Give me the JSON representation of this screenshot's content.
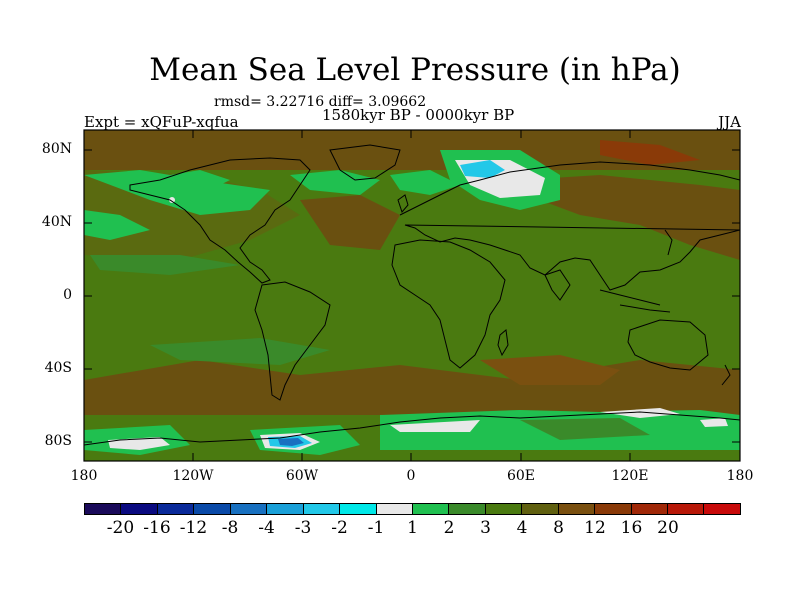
{
  "title": "Mean Sea Level Pressure (in hPa)",
  "stats": "rmsd= 3.22716 diff= 3.09662",
  "experiment": "Expt = xQFuP-xqfua",
  "period": "1580kyr BP - 0000kyr BP",
  "season": "JJA",
  "lat_labels": [
    "80N",
    "40N",
    "0",
    "40S",
    "80S"
  ],
  "lon_labels": [
    "180",
    "120W",
    "60W",
    "0",
    "60E",
    "120E",
    "180"
  ],
  "colorbar": {
    "colors": [
      "#1a0a5a",
      "#0a0a80",
      "#0a2a9a",
      "#0a4aa8",
      "#1870c0",
      "#1aa0d8",
      "#22c8e8",
      "#00e8e8",
      "#e8e8e8",
      "#20c050",
      "#3a8a2a",
      "#4a7a10",
      "#606010",
      "#7a5010",
      "#8a3a08",
      "#a02808",
      "#b81808",
      "#c80a0a"
    ],
    "labels": [
      "-20",
      "-16",
      "-12",
      "-8",
      "-4",
      "-3",
      "-2",
      "-1",
      "1",
      "2",
      "3",
      "4",
      "8",
      "12",
      "16",
      "20"
    ]
  },
  "colors": {
    "olive": "#4a7a10",
    "brown": "#6a5010",
    "green": "#20c050",
    "light": "#e8e8e8",
    "cyan": "#22c8e8",
    "blue": "#1870c0"
  }
}
